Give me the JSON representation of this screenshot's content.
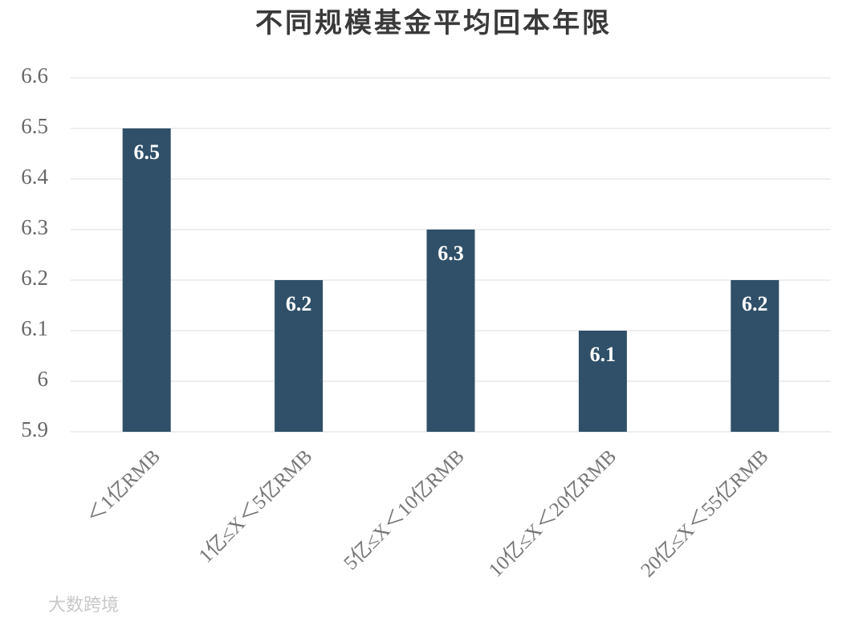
{
  "chart_data": {
    "type": "bar",
    "title": "不同规模基金平均回本年限",
    "categories": [
      "＜1亿RMB",
      "1亿≤X＜5亿RMB",
      "5亿≤X＜10亿RMB",
      "10亿≤X＜20亿RMB",
      "20亿≤X＜55亿RMB"
    ],
    "values": [
      6.5,
      6.2,
      6.3,
      6.1,
      6.2
    ],
    "color": "#2f5068",
    "ylim": [
      5.9,
      6.6
    ],
    "yticks": [
      5.9,
      6,
      6.1,
      6.2,
      6.3,
      6.4,
      6.5,
      6.6
    ],
    "grid": true
  },
  "watermark": "大数跨境"
}
